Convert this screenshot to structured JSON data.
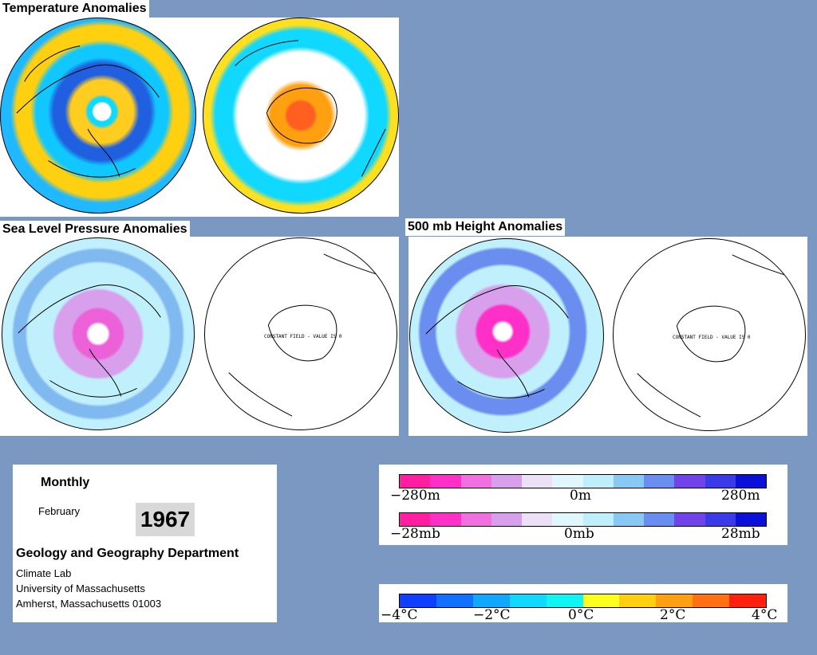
{
  "sections": {
    "temperature": "Temperature Anomalies",
    "slp": "Sea Level Pressure Anomalies",
    "height": "500 mb Height Anomalies"
  },
  "constant_field_text": "CONSTANT FIELD - VALUE IS 0",
  "info": {
    "period": "Monthly",
    "month": "February",
    "year": "1967",
    "department": "Geology and Geography Department",
    "lines": [
      "Climate Lab",
      "University of Massachusetts",
      "Amherst, Massachusetts 01003"
    ]
  },
  "legends": {
    "height": {
      "min": "−280m",
      "mid": "0m",
      "max": "280m"
    },
    "pressure": {
      "min": "−28mb",
      "mid": "0mb",
      "max": "28mb"
    },
    "temperature": {
      "t1": "−4°C",
      "t2": "−2°C",
      "t3": "0°C",
      "t4": "2°C",
      "t5": "4°C"
    }
  },
  "colors": {
    "background": "#7b98c3",
    "pressure_scale": [
      "#ff1fa0",
      "#ff30c8",
      "#f070e0",
      "#d8a0ec",
      "#ece0f6",
      "#e0f7ff",
      "#bfeefc",
      "#88c8f4",
      "#6a8ef0",
      "#7044e8",
      "#3a3ae8",
      "#0b10d8"
    ],
    "temperature_scale": [
      "#1040ff",
      "#1070ff",
      "#10a8ff",
      "#10d8ff",
      "#10f4f4",
      "#ffff20",
      "#ffd010",
      "#ffa010",
      "#ff7010",
      "#ff2010"
    ]
  }
}
